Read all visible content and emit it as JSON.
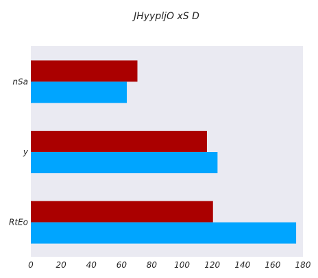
{
  "chart_data": {
    "type": "bar",
    "orientation": "horizontal",
    "title": "JHyypljO xS D",
    "xlabel": "",
    "ylabel": "",
    "categories": [
      "nSa",
      "y",
      "RtEo"
    ],
    "series": [
      {
        "values": [
          70.5,
          116.5,
          120.5
        ],
        "color": "#aa0000"
      },
      {
        "values": [
          63.5,
          123.5,
          175.5
        ],
        "color": "#00a5ff"
      }
    ],
    "xlim": [
      0,
      180
    ],
    "xticks": [
      0,
      20,
      40,
      60,
      80,
      100,
      120,
      140,
      160,
      180
    ],
    "grid": false,
    "legend": "none",
    "background": "#eaeaf2"
  }
}
